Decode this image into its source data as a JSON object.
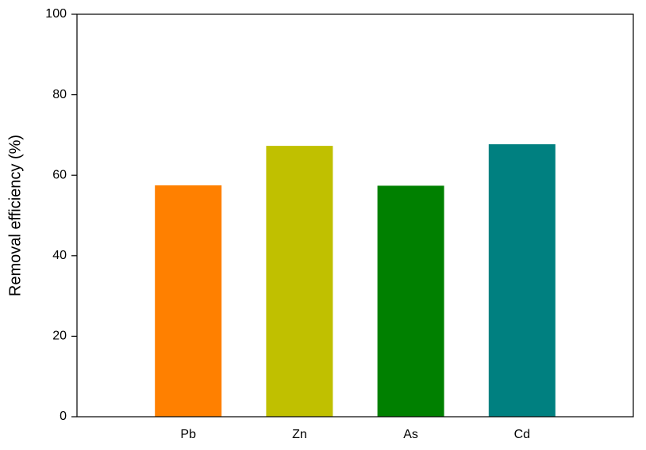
{
  "chart_data": {
    "type": "bar",
    "y_label": "Removal efficiency (%)",
    "categories": [
      "Pb",
      "Zn",
      "As",
      "Cd"
    ],
    "values": [
      57.5,
      67.3,
      57.4,
      67.7
    ],
    "colors": [
      "#ff8000",
      "#c0c000",
      "#008000",
      "#008080"
    ],
    "ylim": [
      0,
      100
    ],
    "yticks": [
      0,
      20,
      40,
      60,
      80,
      100
    ],
    "grid": false
  }
}
